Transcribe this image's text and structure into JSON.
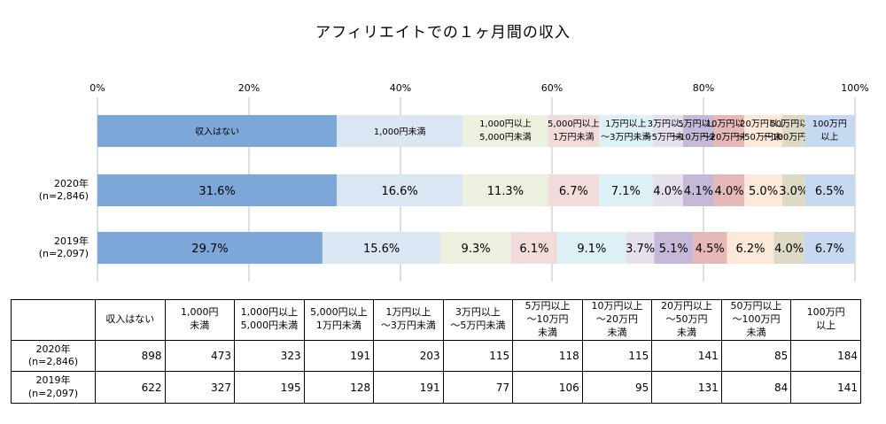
{
  "title": "アフィリエイトでの１ヶ月間の収入",
  "chart_data": {
    "type": "bar",
    "orientation": "horizontal-stacked-100",
    "xlim": [
      0,
      100
    ],
    "x_ticks": [
      "0%",
      "20%",
      "40%",
      "60%",
      "80%",
      "100%"
    ],
    "grid": "vertical",
    "legend": {
      "placement": "top",
      "entries": [
        {
          "lines": [
            "収入はない"
          ]
        },
        {
          "lines": [
            "1,000円未満"
          ]
        },
        {
          "lines": [
            "1,000円以上",
            "5,000円未満"
          ]
        },
        {
          "lines": [
            "5,000円以上",
            "1万円未満"
          ]
        },
        {
          "lines": [
            "1万円以上",
            "～3万円未満"
          ]
        },
        {
          "lines": [
            "3万円以上",
            "～5万円未満"
          ]
        },
        {
          "lines": [
            "5万円以上",
            "～10万円未満"
          ]
        },
        {
          "lines": [
            "10万円以上",
            "～20万円未満"
          ]
        },
        {
          "lines": [
            "20万円以上",
            "～50万円未満"
          ]
        },
        {
          "lines": [
            "50万円以上",
            "～100万円未満"
          ]
        },
        {
          "lines": [
            "100万円",
            "以上"
          ]
        }
      ]
    },
    "colors": [
      "#7da7d9",
      "#dbe6f4",
      "#ebf1de",
      "#f2dcdb",
      "#dcf0f5",
      "#e6e0ec",
      "#c5b8d9",
      "#e6b8b7",
      "#fde9d9",
      "#ddd9c4",
      "#c6d9f1"
    ],
    "rows": [
      {
        "label_lines": [
          "2020年",
          "(n=2,846)"
        ],
        "values": [
          31.6,
          16.6,
          11.3,
          6.7,
          7.1,
          4.0,
          4.1,
          4.0,
          5.0,
          3.0,
          6.5
        ],
        "labels": [
          "31.6%",
          "16.6%",
          "11.3%",
          "6.7%",
          "7.1%",
          "4.0%",
          "4.1%",
          "4.0%",
          "5.0%",
          "3.0%",
          "6.5%"
        ]
      },
      {
        "label_lines": [
          "2019年",
          "(n=2,097)"
        ],
        "values": [
          29.7,
          15.6,
          9.3,
          6.1,
          9.1,
          3.7,
          5.1,
          4.5,
          6.2,
          4.0,
          6.7
        ],
        "labels": [
          "29.7%",
          "15.6%",
          "9.3%",
          "6.1%",
          "9.1%",
          "3.7%",
          "5.1%",
          "4.5%",
          "6.2%",
          "4.0%",
          "6.7%"
        ]
      }
    ]
  },
  "table": {
    "headers": [
      [
        "収入はない"
      ],
      [
        "1,000円",
        "未満"
      ],
      [
        "1,000円以上",
        "5,000円未満"
      ],
      [
        "5,000円以上",
        "1万円未満"
      ],
      [
        "1万円以上",
        "～3万円未満"
      ],
      [
        "3万円以上",
        "～5万円未満"
      ],
      [
        "5万円以上",
        "～10万円",
        "未満"
      ],
      [
        "10万円以上",
        "～20万円",
        "未満"
      ],
      [
        "20万円以上",
        "～50万円",
        "未満"
      ],
      [
        "50万円以上",
        "～100万円",
        "未満"
      ],
      [
        "100万円",
        "以上"
      ]
    ],
    "rows": [
      {
        "label": [
          "2020年",
          "(n=2,846)"
        ],
        "values": [
          "898",
          "473",
          "323",
          "191",
          "203",
          "115",
          "118",
          "115",
          "141",
          "85",
          "184"
        ]
      },
      {
        "label": [
          "2019年",
          "(n=2,097)"
        ],
        "values": [
          "622",
          "327",
          "195",
          "128",
          "191",
          "77",
          "106",
          "95",
          "131",
          "84",
          "141"
        ]
      }
    ]
  }
}
